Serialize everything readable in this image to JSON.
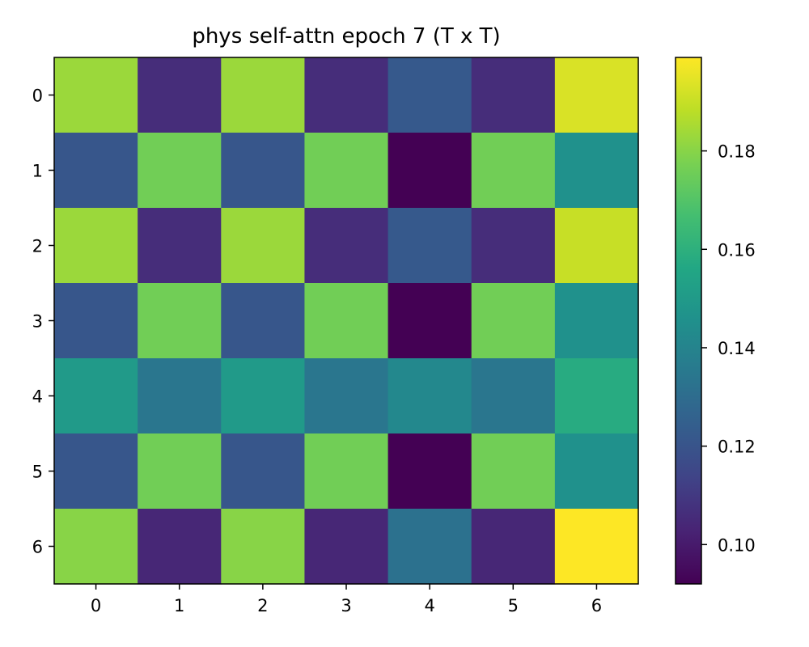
{
  "chart_data": {
    "type": "heatmap",
    "title": "phys self-attn epoch 7 (T x T)",
    "xlabel": "",
    "ylabel": "",
    "x_tick_labels": [
      "0",
      "1",
      "2",
      "3",
      "4",
      "5",
      "6"
    ],
    "y_tick_labels": [
      "0",
      "1",
      "2",
      "3",
      "4",
      "5",
      "6"
    ],
    "values": [
      [
        0.183,
        0.106,
        0.183,
        0.106,
        0.122,
        0.106,
        0.193
      ],
      [
        0.121,
        0.176,
        0.121,
        0.176,
        0.092,
        0.176,
        0.146
      ],
      [
        0.183,
        0.106,
        0.183,
        0.106,
        0.122,
        0.106,
        0.19
      ],
      [
        0.121,
        0.176,
        0.121,
        0.176,
        0.092,
        0.176,
        0.146
      ],
      [
        0.15,
        0.134,
        0.15,
        0.134,
        0.142,
        0.134,
        0.158
      ],
      [
        0.121,
        0.176,
        0.121,
        0.176,
        0.092,
        0.176,
        0.146
      ],
      [
        0.18,
        0.104,
        0.18,
        0.104,
        0.132,
        0.104,
        0.199
      ]
    ],
    "colormap": "viridis",
    "color_range": [
      0.092,
      0.199
    ],
    "colorbar_ticks": [
      "0.10",
      "0.12",
      "0.14",
      "0.16",
      "0.18"
    ],
    "grid": false
  }
}
